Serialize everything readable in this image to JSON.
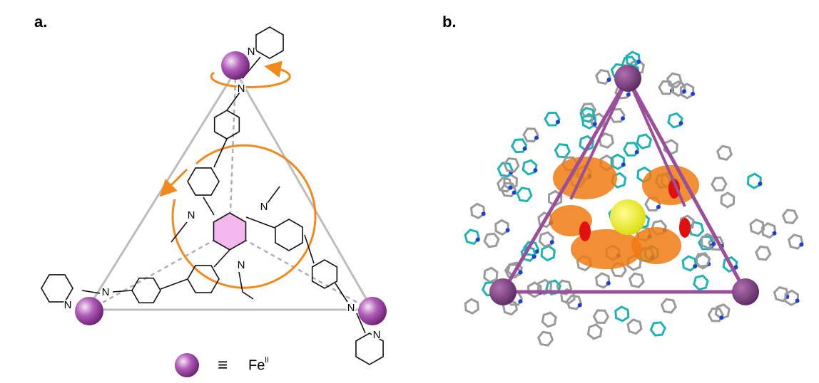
{
  "panels": [
    {
      "label": "a.",
      "atoms": [
        "N",
        "N",
        "N",
        "N",
        "N",
        "N",
        "N",
        "N",
        "N"
      ],
      "legend": {
        "symbol": "≡",
        "element": "Fe",
        "oxidation": "II"
      }
    },
    {
      "label": "b."
    }
  ]
}
